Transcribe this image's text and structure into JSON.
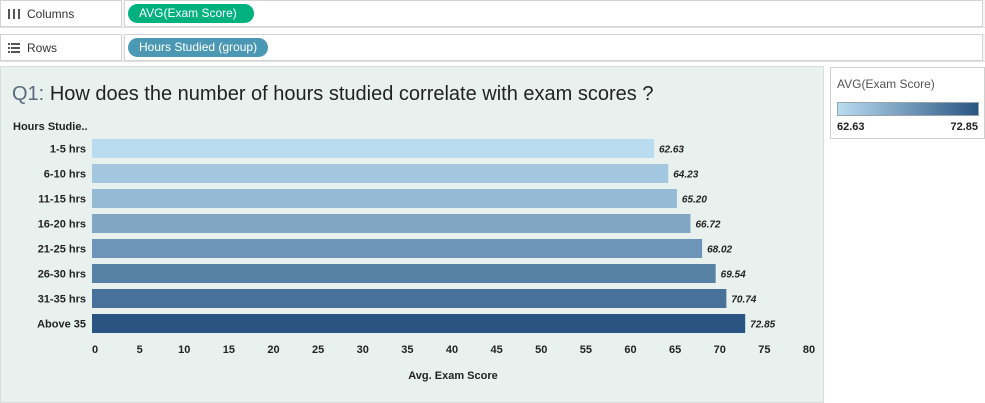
{
  "shelves": {
    "columns": {
      "label": "Columns",
      "icon": "columns-icon",
      "pill": "AVG(Exam Score)"
    },
    "rows": {
      "label": "Rows",
      "icon": "rows-icon",
      "pill": "Hours Studied (group)"
    }
  },
  "view": {
    "title_prefix": "Q1:",
    "title_text": "How does the number of hours studied correlate with exam scores ?",
    "row_header": "Hours Studie.."
  },
  "legend": {
    "title": "AVG(Exam Score)",
    "min_label": "62.63",
    "max_label": "72.85",
    "color_low": "#b9dcf0",
    "color_high": "#2a5583"
  },
  "chart_data": {
    "type": "bar",
    "orientation": "horizontal",
    "categories": [
      "1-5 hrs",
      "6-10 hrs",
      "11-15 hrs",
      "16-20 hrs",
      "21-25 hrs",
      "26-30 hrs",
      "31-35 hrs",
      "Above 35"
    ],
    "values": [
      62.63,
      64.23,
      65.2,
      66.72,
      68.02,
      69.54,
      70.74,
      72.85
    ],
    "value_labels": [
      "62.63",
      "64.23",
      "65.20",
      "66.72",
      "68.02",
      "69.54",
      "70.74",
      "72.85"
    ],
    "xlabel": "Avg. Exam Score",
    "xlim": [
      0,
      80
    ],
    "xticks": [
      0,
      5,
      10,
      15,
      20,
      25,
      30,
      35,
      40,
      45,
      50,
      55,
      60,
      65,
      70,
      75,
      80
    ],
    "color_scale": {
      "low": "#b9dcf0",
      "high": "#2a5583",
      "min": 62.63,
      "max": 72.85
    }
  }
}
